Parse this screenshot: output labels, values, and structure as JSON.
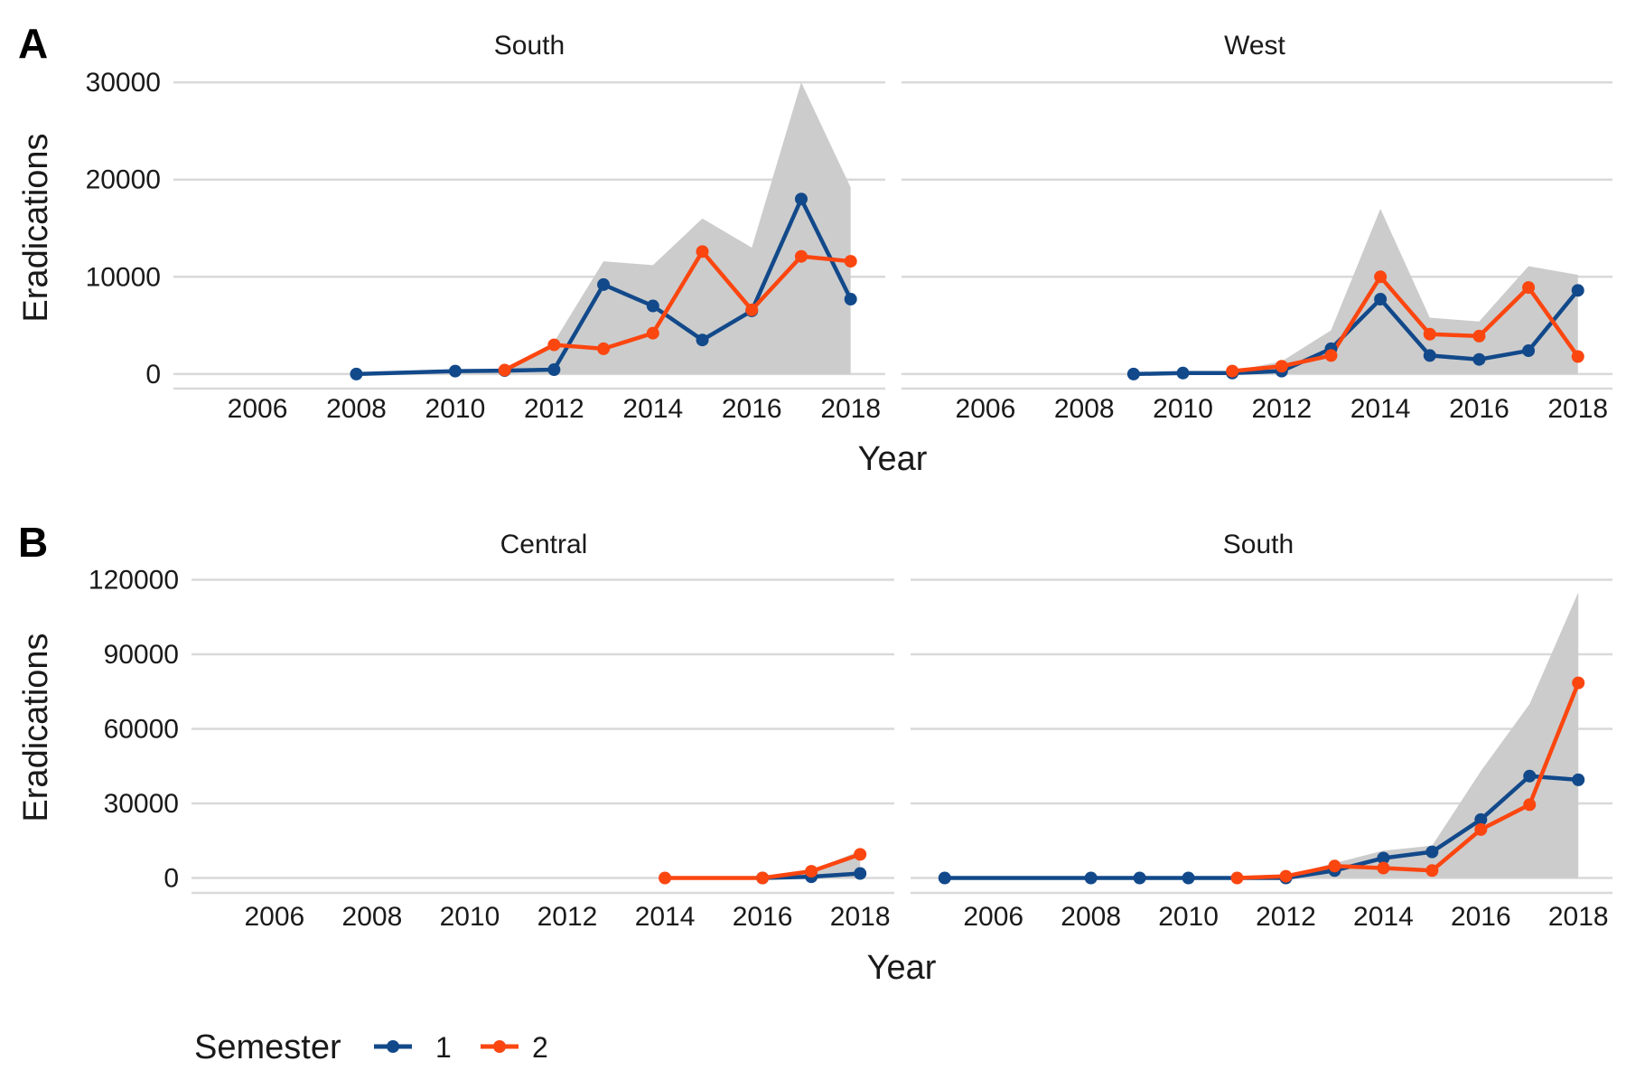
{
  "colors": {
    "semester_1": "#12498a",
    "semester_2": "#fb4610",
    "band": "#cccccc",
    "grid": "#d9d9d9"
  },
  "legend": {
    "title": "Semester",
    "items": [
      {
        "label": "1",
        "color": "#12498a"
      },
      {
        "label": "2",
        "color": "#fb4610"
      }
    ]
  },
  "chart_data": [
    {
      "type": "line",
      "panel_letter": "A",
      "ylabel": "Eradications",
      "xlabel": "Year",
      "yticks": [
        0,
        10000,
        20000,
        30000
      ],
      "xticks": [
        2006,
        2008,
        2010,
        2012,
        2014,
        2016,
        2018
      ],
      "ylim": [
        -1500,
        31500
      ],
      "xlim": [
        2004.3,
        2018.7
      ],
      "facets": [
        {
          "title": "South",
          "band": {
            "x": [
              2008,
              2010,
              2011,
              2012,
              2013,
              2014,
              2015,
              2016,
              2017,
              2018
            ],
            "y": [
              0,
              350,
              450,
              3300,
              11600,
              11200,
              16000,
              13000,
              30000,
              19200
            ]
          },
          "series": [
            {
              "name": "1",
              "x": [
                2008,
                2010,
                2011,
                2012,
                2013,
                2014,
                2015,
                2016,
                2017,
                2018
              ],
              "values": [
                0,
                300,
                350,
                450,
                9200,
                7000,
                3500,
                6500,
                18000,
                7700
              ]
            },
            {
              "name": "2",
              "x": [
                2011,
                2012,
                2013,
                2014,
                2015,
                2016,
                2017,
                2018
              ],
              "values": [
                400,
                3000,
                2600,
                4200,
                12600,
                6600,
                12100,
                11600
              ]
            }
          ]
        },
        {
          "title": "West",
          "band": {
            "x": [
              2009,
              2010,
              2011,
              2012,
              2013,
              2014,
              2015,
              2016,
              2017,
              2018
            ],
            "y": [
              0,
              150,
              300,
              1300,
              4500,
              17000,
              5800,
              5400,
              11100,
              10200
            ]
          },
          "series": [
            {
              "name": "1",
              "x": [
                2009,
                2010,
                2011,
                2012,
                2013,
                2014,
                2015,
                2016,
                2017,
                2018
              ],
              "values": [
                0,
                100,
                100,
                300,
                2600,
                7700,
                1900,
                1500,
                2400,
                8600
              ]
            },
            {
              "name": "2",
              "x": [
                2011,
                2012,
                2013,
                2014,
                2015,
                2016,
                2017,
                2018
              ],
              "values": [
                300,
                800,
                1900,
                10000,
                4100,
                3900,
                8900,
                1800
              ]
            }
          ]
        }
      ]
    },
    {
      "type": "line",
      "panel_letter": "B",
      "ylabel": "Eradications",
      "xlabel": "Year",
      "yticks": [
        0,
        30000,
        60000,
        90000,
        120000
      ],
      "xticks": [
        2006,
        2008,
        2010,
        2012,
        2014,
        2016,
        2018
      ],
      "ylim": [
        -6000,
        126000
      ],
      "xlim": [
        2004.3,
        2018.7
      ],
      "facets": [
        {
          "title": "Central",
          "band": {
            "x": [
              2014,
              2016,
              2017,
              2018
            ],
            "y": [
              0,
              0,
              3000,
              11000
            ]
          },
          "series": [
            {
              "name": "1",
              "x": [
                2016,
                2017,
                2018
              ],
              "values": [
                0,
                500,
                1800
              ]
            },
            {
              "name": "2",
              "x": [
                2014,
                2016,
                2017,
                2018
              ],
              "values": [
                0,
                0,
                2700,
                9500
              ]
            }
          ]
        },
        {
          "title": "South",
          "band": {
            "x": [
              2005,
              2008,
              2009,
              2010,
              2011,
              2012,
              2013,
              2014,
              2015,
              2016,
              2017,
              2018
            ],
            "y": [
              0,
              0,
              0,
              0,
              0,
              1000,
              6000,
              11000,
              13000,
              43000,
              70000,
              115000
            ]
          },
          "series": [
            {
              "name": "1",
              "x": [
                2005,
                2008,
                2009,
                2010,
                2012,
                2013,
                2014,
                2015,
                2016,
                2017,
                2018
              ],
              "values": [
                0,
                0,
                0,
                0,
                0,
                3000,
                8000,
                10500,
                23500,
                41000,
                39500
              ]
            },
            {
              "name": "2",
              "x": [
                2011,
                2012,
                2013,
                2014,
                2015,
                2016,
                2017,
                2018
              ],
              "values": [
                0,
                700,
                4800,
                4000,
                3000,
                19500,
                29500,
                78500
              ]
            }
          ]
        }
      ]
    }
  ]
}
